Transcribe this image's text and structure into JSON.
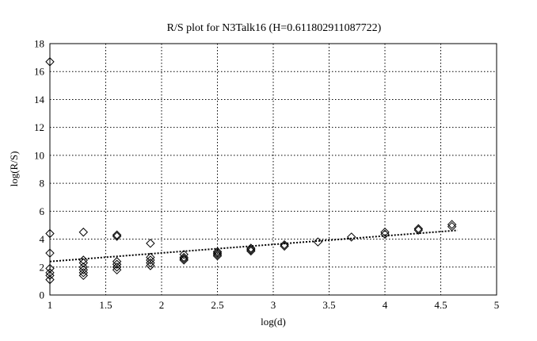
{
  "chart_data": {
    "type": "scatter",
    "title": "R/S plot for N3Talk16 (H=0.611802911087722)",
    "xlabel": "log(d)",
    "ylabel": "log(R/S)",
    "xlim": [
      1,
      5
    ],
    "ylim": [
      0,
      18
    ],
    "xticks": [
      1,
      1.5,
      2,
      2.5,
      3,
      3.5,
      4,
      4.5,
      5
    ],
    "xtick_labels": [
      "1",
      "1.5",
      "2",
      "2.5",
      "3",
      "3.5",
      "4",
      "4.5",
      "5"
    ],
    "yticks": [
      0,
      2,
      4,
      6,
      8,
      10,
      12,
      14,
      16,
      18
    ],
    "ytick_labels": [
      "0",
      "2",
      "4",
      "6",
      "8",
      "10",
      "12",
      "14",
      "16",
      "18"
    ],
    "grid": true,
    "series": [
      {
        "marker": "diamond",
        "points": [
          [
            1.0,
            16.7
          ],
          [
            1.0,
            4.4
          ],
          [
            1.0,
            3.0
          ],
          [
            1.0,
            1.9
          ],
          [
            1.0,
            1.6
          ],
          [
            1.0,
            1.4
          ],
          [
            1.0,
            1.1
          ],
          [
            1.3,
            4.5
          ],
          [
            1.3,
            2.5
          ],
          [
            1.3,
            2.3
          ],
          [
            1.3,
            2.0
          ],
          [
            1.3,
            1.8
          ],
          [
            1.3,
            1.6
          ],
          [
            1.3,
            1.4
          ],
          [
            1.6,
            4.3
          ],
          [
            1.6,
            4.2
          ],
          [
            1.6,
            2.4
          ],
          [
            1.6,
            2.2
          ],
          [
            1.6,
            2.0
          ],
          [
            1.6,
            1.8
          ],
          [
            1.9,
            3.7
          ],
          [
            1.9,
            2.7
          ],
          [
            1.9,
            2.5
          ],
          [
            1.9,
            2.3
          ],
          [
            1.9,
            2.1
          ],
          [
            2.2,
            2.9
          ],
          [
            2.2,
            2.7
          ],
          [
            2.2,
            2.6
          ],
          [
            2.2,
            2.5
          ],
          [
            2.5,
            3.1
          ],
          [
            2.5,
            3.0
          ],
          [
            2.5,
            2.9
          ],
          [
            2.5,
            2.8
          ],
          [
            2.8,
            3.35
          ],
          [
            2.8,
            3.25
          ],
          [
            2.8,
            3.15
          ],
          [
            3.1,
            3.6
          ],
          [
            3.1,
            3.5
          ],
          [
            3.4,
            3.8
          ],
          [
            3.7,
            4.15
          ],
          [
            4.0,
            4.5
          ],
          [
            4.0,
            4.35
          ],
          [
            4.3,
            4.75
          ],
          [
            4.3,
            4.65
          ],
          [
            4.6,
            5.05
          ],
          [
            4.6,
            4.9
          ]
        ]
      }
    ],
    "fit_line": {
      "x": [
        1.0,
        4.65
      ],
      "y": [
        2.4,
        4.63
      ]
    }
  }
}
